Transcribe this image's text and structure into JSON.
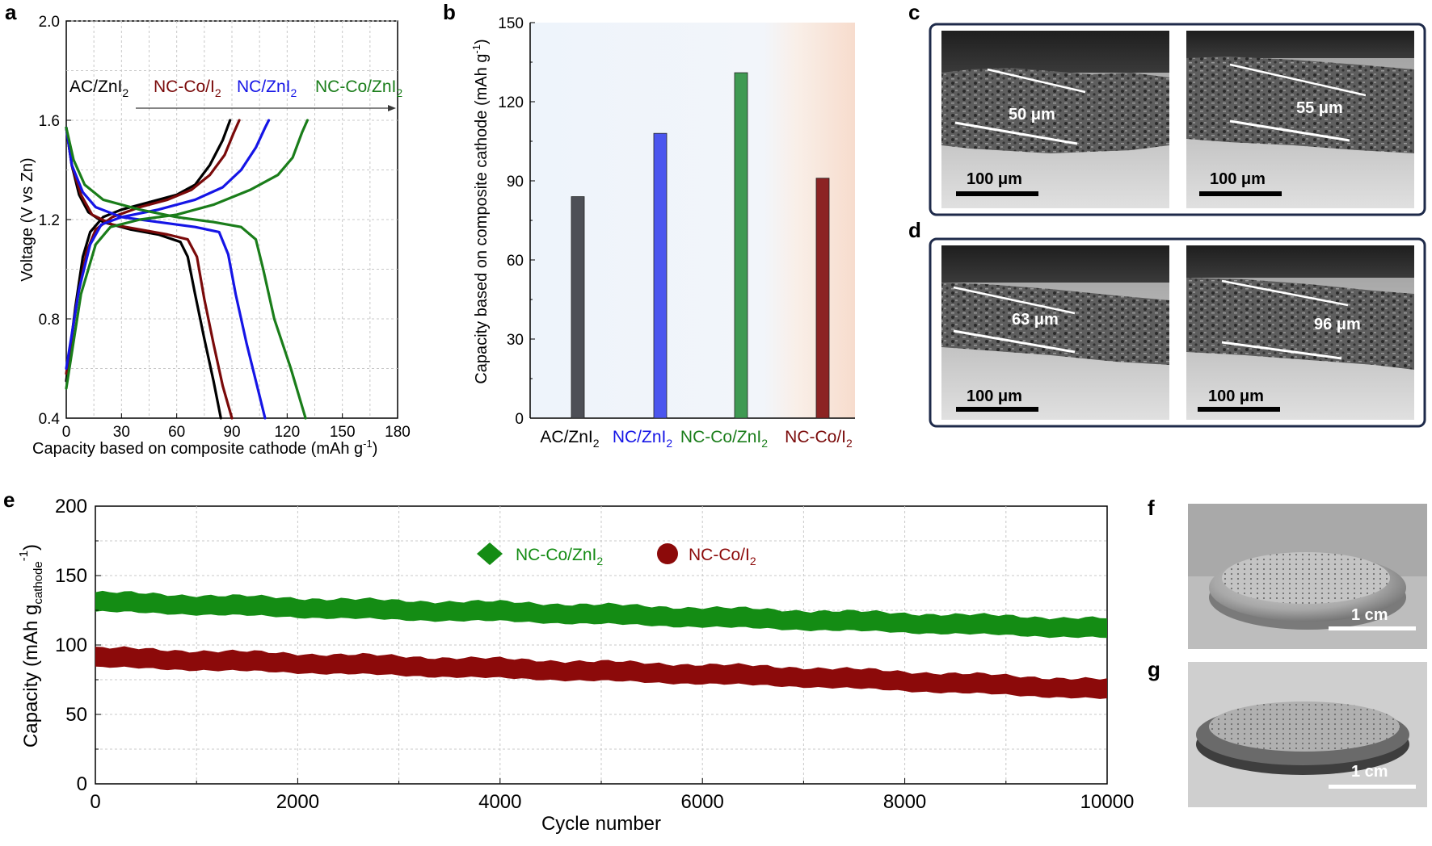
{
  "panels": {
    "a": "a",
    "b": "b",
    "c": "c",
    "d": "d",
    "e": "e",
    "f": "f",
    "g": "g"
  },
  "colors": {
    "ac": "#000000",
    "nc": "#1515e6",
    "ncco_zni2": "#1a7d1a",
    "ncco_i2": "#7a0a0a",
    "grid": "#c8c8c8"
  },
  "chart_data": [
    {
      "id": "a",
      "type": "line",
      "xlabel": "Capacity based on composite cathode (mAh g",
      "xlabel_sup": "-1",
      "xlabel_close": ")",
      "ylabel": "Voltage (V vs Zn)",
      "xlim": [
        0,
        180
      ],
      "ylim": [
        0.4,
        2.0
      ],
      "xticks": [
        "0",
        "30",
        "60",
        "90",
        "120",
        "150",
        "180"
      ],
      "yticks": [
        "0.4",
        "0.8",
        "1.2",
        "1.6",
        "2.0"
      ],
      "grid": true,
      "labels": [
        {
          "text": "AC/ZnI",
          "sub": "2",
          "color": "#000000"
        },
        {
          "text": "NC-Co/I",
          "sub": "2",
          "color": "#7a0a0a"
        },
        {
          "text": "NC/ZnI",
          "sub": "2",
          "color": "#1515e6"
        },
        {
          "text": "NC-Co/ZnI",
          "sub": "2",
          "color": "#1a7d1a"
        }
      ],
      "series": [
        {
          "color": "#000000",
          "charge": [
            [
              0,
              0.55
            ],
            [
              5,
              0.85
            ],
            [
              9,
              1.05
            ],
            [
              13,
              1.15
            ],
            [
              20,
              1.21
            ],
            [
              30,
              1.24
            ],
            [
              45,
              1.27
            ],
            [
              60,
              1.3
            ],
            [
              70,
              1.34
            ],
            [
              78,
              1.42
            ],
            [
              85,
              1.52
            ],
            [
              89,
              1.6
            ]
          ],
          "discharge": [
            [
              0,
              1.57
            ],
            [
              3,
              1.42
            ],
            [
              7,
              1.3
            ],
            [
              12,
              1.23
            ],
            [
              20,
              1.19
            ],
            [
              35,
              1.16
            ],
            [
              50,
              1.14
            ],
            [
              62,
              1.11
            ],
            [
              66,
              1.05
            ],
            [
              70,
              0.9
            ],
            [
              75,
              0.72
            ],
            [
              80,
              0.55
            ],
            [
              84,
              0.4
            ]
          ]
        },
        {
          "color": "#7a0a0a",
          "charge": [
            [
              0,
              0.58
            ],
            [
              6,
              0.88
            ],
            [
              11,
              1.07
            ],
            [
              16,
              1.16
            ],
            [
              25,
              1.21
            ],
            [
              40,
              1.25
            ],
            [
              55,
              1.28
            ],
            [
              68,
              1.32
            ],
            [
              78,
              1.38
            ],
            [
              86,
              1.46
            ],
            [
              91,
              1.55
            ],
            [
              94,
              1.6
            ]
          ],
          "discharge": [
            [
              0,
              1.57
            ],
            [
              3,
              1.42
            ],
            [
              8,
              1.3
            ],
            [
              14,
              1.22
            ],
            [
              25,
              1.18
            ],
            [
              40,
              1.16
            ],
            [
              55,
              1.14
            ],
            [
              66,
              1.12
            ],
            [
              71,
              1.05
            ],
            [
              75,
              0.88
            ],
            [
              80,
              0.7
            ],
            [
              85,
              0.53
            ],
            [
              90,
              0.4
            ]
          ]
        },
        {
          "color": "#1515e6",
          "charge": [
            [
              0,
              0.6
            ],
            [
              7,
              0.92
            ],
            [
              13,
              1.1
            ],
            [
              19,
              1.18
            ],
            [
              30,
              1.21
            ],
            [
              50,
              1.24
            ],
            [
              70,
              1.28
            ],
            [
              85,
              1.33
            ],
            [
              95,
              1.4
            ],
            [
              103,
              1.49
            ],
            [
              108,
              1.57
            ],
            [
              110,
              1.6
            ]
          ],
          "discharge": [
            [
              0,
              1.57
            ],
            [
              3,
              1.42
            ],
            [
              9,
              1.31
            ],
            [
              16,
              1.25
            ],
            [
              30,
              1.21
            ],
            [
              50,
              1.19
            ],
            [
              70,
              1.17
            ],
            [
              83,
              1.15
            ],
            [
              88,
              1.06
            ],
            [
              92,
              0.9
            ],
            [
              98,
              0.7
            ],
            [
              104,
              0.52
            ],
            [
              108,
              0.4
            ]
          ]
        },
        {
          "color": "#1a7d1a",
          "charge": [
            [
              0,
              0.52
            ],
            [
              8,
              0.9
            ],
            [
              16,
              1.1
            ],
            [
              24,
              1.17
            ],
            [
              40,
              1.2
            ],
            [
              60,
              1.22
            ],
            [
              80,
              1.26
            ],
            [
              100,
              1.32
            ],
            [
              115,
              1.38
            ],
            [
              123,
              1.45
            ],
            [
              128,
              1.55
            ],
            [
              131,
              1.6
            ]
          ],
          "discharge": [
            [
              0,
              1.57
            ],
            [
              4,
              1.44
            ],
            [
              10,
              1.34
            ],
            [
              20,
              1.28
            ],
            [
              40,
              1.24
            ],
            [
              60,
              1.21
            ],
            [
              80,
              1.19
            ],
            [
              95,
              1.17
            ],
            [
              103,
              1.12
            ],
            [
              107,
              1.0
            ],
            [
              113,
              0.8
            ],
            [
              122,
              0.6
            ],
            [
              130,
              0.4
            ]
          ]
        }
      ]
    },
    {
      "id": "b",
      "type": "bar",
      "ylabel": "Capacity based on composite cathode (mAh g",
      "ylabel_sup": "-1",
      "ylabel_close": ")",
      "ylim": [
        0,
        150
      ],
      "yticks": [
        "0",
        "30",
        "60",
        "90",
        "120",
        "150"
      ],
      "categories": [
        {
          "text": "AC/ZnI",
          "sub": "2",
          "color": "#000000"
        },
        {
          "text": "NC/ZnI",
          "sub": "2",
          "color": "#1515e6"
        },
        {
          "text": "NC-Co/ZnI",
          "sub": "2",
          "color": "#1a7d1a"
        },
        {
          "text": "NC-Co/I",
          "sub": "2",
          "color": "#7a0a0a"
        }
      ],
      "values": [
        84,
        108,
        131,
        91
      ],
      "bar_colors": [
        "#4d4f56",
        "#4b55ee",
        "#3f9a52",
        "#8c2323"
      ]
    },
    {
      "id": "e",
      "type": "scatter",
      "xlabel": "Cycle number",
      "ylabel": "Capacity (mAh g",
      "ylabel_sub": "cathode",
      "ylabel_sup": "-1",
      "ylabel_close": ")",
      "xlim": [
        0,
        10000
      ],
      "ylim": [
        0,
        200
      ],
      "xticks": [
        "0",
        "2000",
        "4000",
        "6000",
        "8000",
        "10000"
      ],
      "yticks": [
        "0",
        "50",
        "100",
        "150",
        "200"
      ],
      "grid": true,
      "legend_position": "top-center",
      "series": [
        {
          "name": "NC-Co/ZnI",
          "sub": "2",
          "marker": "diamond",
          "color": "#148c14",
          "x": [
            0,
            1000,
            2000,
            3000,
            4000,
            5000,
            6000,
            7000,
            8000,
            9000,
            10000
          ],
          "y": [
            131,
            129,
            127,
            125,
            124,
            122,
            120,
            118,
            116,
            114,
            112
          ]
        },
        {
          "name": "NC-Co/I",
          "sub": "2",
          "marker": "circle",
          "color": "#8c0a0a",
          "x": [
            0,
            1000,
            2000,
            3000,
            4000,
            5000,
            6000,
            7000,
            8000,
            9000,
            10000
          ],
          "y": [
            91,
            89,
            87,
            85,
            83,
            81,
            79,
            77,
            74,
            71,
            68
          ]
        }
      ]
    }
  ],
  "sem": {
    "c": [
      {
        "thickness": "50 μm",
        "scale": "100 μm"
      },
      {
        "thickness": "55 μm",
        "scale": "100 μm"
      }
    ],
    "d": [
      {
        "thickness": "63 μm",
        "scale": "100 μm"
      },
      {
        "thickness": "96 μm",
        "scale": "100 μm"
      }
    ]
  },
  "photos": {
    "f": {
      "scale": "1 cm"
    },
    "g": {
      "scale": "1 cm"
    }
  }
}
